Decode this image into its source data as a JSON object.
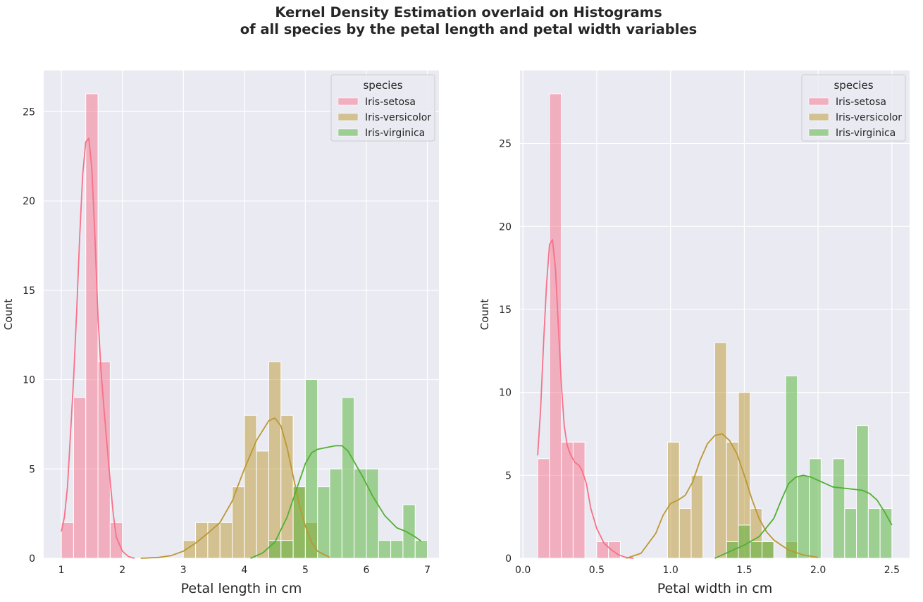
{
  "figure": {
    "title_line1": "Kernel Density Estimation overlaid on Histograms",
    "title_line2": "of all species by the petal length and petal width variables"
  },
  "colors": {
    "Iris-setosa": "#f77189",
    "Iris-versicolor": "#bb9832",
    "Iris-virginica": "#50b131",
    "panel_background": "#eaeaf2",
    "grid": "#ffffff"
  },
  "chart_data": [
    {
      "type": "bar",
      "subtype": "stacked-histogram-with-kde",
      "xlabel": "Petal length in cm",
      "ylabel": "Count",
      "xlim": [
        0.71,
        7.19
      ],
      "ylim": [
        0,
        27.3
      ],
      "xticks": [
        1,
        2,
        3,
        4,
        5,
        6,
        7
      ],
      "yticks": [
        0,
        5,
        10,
        15,
        20,
        25
      ],
      "bin_width": 0.2,
      "grid": true,
      "legend": {
        "title": "species",
        "position": "top-right",
        "entries": [
          "Iris-setosa",
          "Iris-versicolor",
          "Iris-virginica"
        ]
      },
      "series": [
        {
          "name": "Iris-setosa",
          "bins": [
            [
              1.0,
              2
            ],
            [
              1.2,
              9
            ],
            [
              1.4,
              26
            ],
            [
              1.6,
              11
            ],
            [
              1.8,
              2
            ]
          ],
          "kde": [
            [
              1.0,
              1.5
            ],
            [
              1.05,
              2.3
            ],
            [
              1.1,
              4.0
            ],
            [
              1.15,
              7.0
            ],
            [
              1.2,
              10.0
            ],
            [
              1.25,
              13.8
            ],
            [
              1.3,
              18.0
            ],
            [
              1.35,
              21.5
            ],
            [
              1.4,
              23.3
            ],
            [
              1.45,
              23.5
            ],
            [
              1.5,
              21.8
            ],
            [
              1.55,
              18.0
            ],
            [
              1.6,
              13.5
            ],
            [
              1.65,
              10.5
            ],
            [
              1.7,
              8.3
            ],
            [
              1.75,
              6.3
            ],
            [
              1.8,
              4.3
            ],
            [
              1.85,
              2.5
            ],
            [
              1.9,
              1.2
            ],
            [
              2.0,
              0.4
            ],
            [
              2.1,
              0.1
            ],
            [
              2.2,
              0.0
            ]
          ]
        },
        {
          "name": "Iris-versicolor",
          "bins": [
            [
              3.0,
              1
            ],
            [
              3.2,
              2
            ],
            [
              3.4,
              2
            ],
            [
              3.6,
              2
            ],
            [
              3.8,
              4
            ],
            [
              4.0,
              8
            ],
            [
              4.2,
              6
            ],
            [
              4.4,
              11
            ],
            [
              4.6,
              8
            ],
            [
              4.8,
              4
            ],
            [
              5.0,
              2
            ]
          ],
          "kde": [
            [
              2.3,
              0.0
            ],
            [
              2.6,
              0.05
            ],
            [
              2.8,
              0.15
            ],
            [
              3.0,
              0.4
            ],
            [
              3.2,
              0.85
            ],
            [
              3.4,
              1.4
            ],
            [
              3.6,
              2.0
            ],
            [
              3.8,
              3.2
            ],
            [
              4.0,
              5.0
            ],
            [
              4.2,
              6.6
            ],
            [
              4.4,
              7.7
            ],
            [
              4.5,
              7.85
            ],
            [
              4.6,
              7.4
            ],
            [
              4.7,
              6.2
            ],
            [
              4.8,
              4.6
            ],
            [
              4.9,
              3.0
            ],
            [
              5.0,
              1.8
            ],
            [
              5.1,
              0.9
            ],
            [
              5.2,
              0.4
            ],
            [
              5.4,
              0.05
            ]
          ]
        },
        {
          "name": "Iris-virginica",
          "bins": [
            [
              4.4,
              1
            ],
            [
              4.6,
              1
            ],
            [
              4.8,
              4
            ],
            [
              5.0,
              10
            ],
            [
              5.2,
              4
            ],
            [
              5.4,
              5
            ],
            [
              5.6,
              9
            ],
            [
              5.8,
              5
            ],
            [
              6.0,
              5
            ],
            [
              6.2,
              1
            ],
            [
              6.4,
              1
            ],
            [
              6.6,
              3
            ],
            [
              6.8,
              1
            ]
          ],
          "kde": [
            [
              4.1,
              0.0
            ],
            [
              4.3,
              0.3
            ],
            [
              4.5,
              0.9
            ],
            [
              4.7,
              2.3
            ],
            [
              4.85,
              3.8
            ],
            [
              5.0,
              5.3
            ],
            [
              5.1,
              5.9
            ],
            [
              5.2,
              6.1
            ],
            [
              5.35,
              6.2
            ],
            [
              5.5,
              6.3
            ],
            [
              5.6,
              6.3
            ],
            [
              5.7,
              6.0
            ],
            [
              5.8,
              5.4
            ],
            [
              5.95,
              4.5
            ],
            [
              6.1,
              3.5
            ],
            [
              6.3,
              2.4
            ],
            [
              6.5,
              1.7
            ],
            [
              6.65,
              1.5
            ],
            [
              6.8,
              1.2
            ],
            [
              6.9,
              0.95
            ]
          ]
        }
      ]
    },
    {
      "type": "bar",
      "subtype": "stacked-histogram-with-kde",
      "xlabel": "Petal width in cm",
      "ylabel": "Count",
      "xlim": [
        -0.02,
        2.62
      ],
      "ylim": [
        0,
        29.4
      ],
      "xticks": [
        0.0,
        0.5,
        1.0,
        1.5,
        2.0,
        2.5
      ],
      "xticklabels": [
        "0.0",
        "0.5",
        "1.0",
        "1.5",
        "2.0",
        "2.5"
      ],
      "yticks": [
        0,
        5,
        10,
        15,
        20,
        25
      ],
      "bin_width": 0.08,
      "grid": true,
      "legend": {
        "title": "species",
        "position": "top-right",
        "entries": [
          "Iris-setosa",
          "Iris-versicolor",
          "Iris-virginica"
        ]
      },
      "series": [
        {
          "name": "Iris-setosa",
          "bins": [
            [
              0.1,
              6
            ],
            [
              0.18,
              28
            ],
            [
              0.26,
              7
            ],
            [
              0.34,
              7
            ],
            [
              0.5,
              1
            ],
            [
              0.58,
              1
            ]
          ],
          "kde": [
            [
              0.1,
              6.2
            ],
            [
              0.12,
              9.0
            ],
            [
              0.14,
              13.0
            ],
            [
              0.16,
              16.5
            ],
            [
              0.18,
              18.9
            ],
            [
              0.2,
              19.2
            ],
            [
              0.22,
              17.5
            ],
            [
              0.24,
              14.0
            ],
            [
              0.26,
              10.5
            ],
            [
              0.28,
              8.0
            ],
            [
              0.3,
              6.8
            ],
            [
              0.32,
              6.3
            ],
            [
              0.35,
              5.8
            ],
            [
              0.38,
              5.6
            ],
            [
              0.4,
              5.3
            ],
            [
              0.43,
              4.5
            ],
            [
              0.46,
              3.0
            ],
            [
              0.5,
              1.8
            ],
            [
              0.55,
              0.9
            ],
            [
              0.6,
              0.5
            ],
            [
              0.65,
              0.2
            ],
            [
              0.7,
              0.05
            ],
            [
              0.75,
              0.0
            ]
          ]
        },
        {
          "name": "Iris-versicolor",
          "bins": [
            [
              0.98,
              7
            ],
            [
              1.06,
              3
            ],
            [
              1.14,
              5
            ],
            [
              1.3,
              13
            ],
            [
              1.38,
              7
            ],
            [
              1.46,
              10
            ],
            [
              1.54,
              3
            ],
            [
              1.62,
              1
            ],
            [
              1.78,
              1
            ]
          ],
          "kde": [
            [
              0.7,
              0.0
            ],
            [
              0.8,
              0.3
            ],
            [
              0.9,
              1.5
            ],
            [
              0.95,
              2.6
            ],
            [
              1.0,
              3.3
            ],
            [
              1.05,
              3.5
            ],
            [
              1.1,
              3.8
            ],
            [
              1.15,
              4.6
            ],
            [
              1.2,
              5.9
            ],
            [
              1.25,
              6.9
            ],
            [
              1.3,
              7.4
            ],
            [
              1.35,
              7.5
            ],
            [
              1.4,
              7.1
            ],
            [
              1.45,
              6.3
            ],
            [
              1.5,
              5.0
            ],
            [
              1.55,
              3.6
            ],
            [
              1.6,
              2.4
            ],
            [
              1.65,
              1.6
            ],
            [
              1.7,
              1.1
            ],
            [
              1.75,
              0.8
            ],
            [
              1.8,
              0.5
            ],
            [
              1.9,
              0.2
            ],
            [
              2.0,
              0.05
            ]
          ]
        },
        {
          "name": "Iris-virginica",
          "bins": [
            [
              1.38,
              1
            ],
            [
              1.46,
              2
            ],
            [
              1.54,
              1
            ],
            [
              1.62,
              1
            ],
            [
              1.78,
              11
            ],
            [
              1.86,
              5
            ],
            [
              1.94,
              6
            ],
            [
              2.1,
              6
            ],
            [
              2.18,
              3
            ],
            [
              2.26,
              8
            ],
            [
              2.34,
              3
            ],
            [
              2.42,
              3
            ]
          ],
          "kde": [
            [
              1.3,
              0.0
            ],
            [
              1.4,
              0.4
            ],
            [
              1.5,
              0.8
            ],
            [
              1.6,
              1.3
            ],
            [
              1.7,
              2.4
            ],
            [
              1.75,
              3.5
            ],
            [
              1.8,
              4.5
            ],
            [
              1.85,
              4.9
            ],
            [
              1.9,
              5.0
            ],
            [
              1.95,
              4.9
            ],
            [
              2.0,
              4.7
            ],
            [
              2.05,
              4.5
            ],
            [
              2.1,
              4.3
            ],
            [
              2.2,
              4.2
            ],
            [
              2.3,
              4.1
            ],
            [
              2.35,
              3.9
            ],
            [
              2.4,
              3.5
            ],
            [
              2.45,
              2.8
            ],
            [
              2.5,
              2.0
            ]
          ]
        }
      ]
    }
  ]
}
